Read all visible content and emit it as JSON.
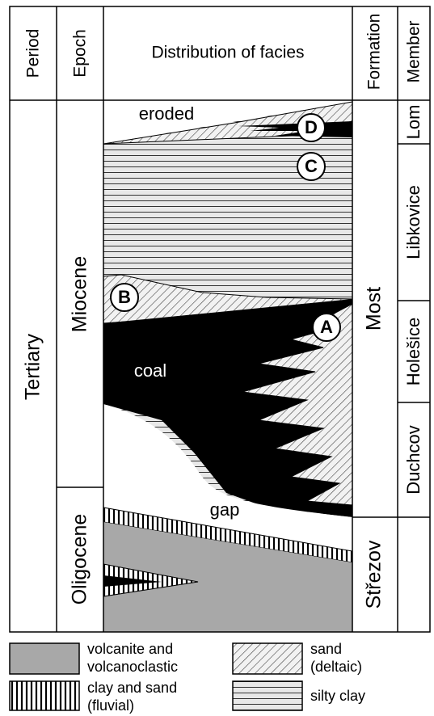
{
  "header": {
    "period": "Period",
    "epoch": "Epoch",
    "facies": "Distribution of facies",
    "formation": "Formation",
    "member": "Member"
  },
  "period": "Tertiary",
  "epochs": [
    "Miocene",
    "Oligocene"
  ],
  "formations": [
    "Most",
    "Střezov"
  ],
  "members": [
    "Lom",
    "Libkovice",
    "Holešice",
    "Duchcov"
  ],
  "facies_labels": [
    "eroded",
    "coal",
    "gap"
  ],
  "markers": [
    "A",
    "B",
    "C",
    "D"
  ],
  "legend": {
    "items": [
      {
        "label": [
          "volcanite and",
          "volcanoclastic"
        ]
      },
      {
        "label": [
          "sand",
          "(deltaic)"
        ]
      },
      {
        "label": [
          "clay and sand",
          "(fluvial)"
        ]
      },
      {
        "label": [
          "silty clay"
        ]
      }
    ]
  }
}
